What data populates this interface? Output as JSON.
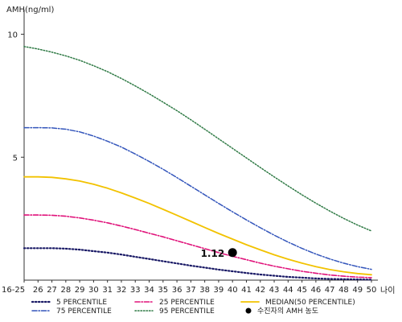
{
  "chart_data": {
    "type": "line",
    "ylabel": "AMH(ng/ml)",
    "xlabel": "나이",
    "ylim": [
      0,
      11
    ],
    "yticks": [
      5,
      10
    ],
    "x": [
      "16-25",
      "26",
      "27",
      "28",
      "29",
      "30",
      "31",
      "32",
      "33",
      "34",
      "35",
      "36",
      "37",
      "38",
      "39",
      "40",
      "41",
      "42",
      "43",
      "44",
      "45",
      "46",
      "47",
      "48",
      "49",
      "50"
    ],
    "series": [
      {
        "name": "5 PERCENTILE",
        "color": "#1a1a66",
        "dash": "1.5 2.5",
        "width": 2.2,
        "values": [
          1.3,
          1.3,
          1.3,
          1.28,
          1.24,
          1.18,
          1.12,
          1.04,
          0.95,
          0.86,
          0.77,
          0.68,
          0.59,
          0.51,
          0.43,
          0.36,
          0.29,
          0.23,
          0.18,
          0.13,
          0.1,
          0.07,
          0.05,
          0.04,
          0.03,
          0.02
        ]
      },
      {
        "name": "25 PERCENTILE",
        "color": "#e0127a",
        "dash": "6 2 1.5 2",
        "width": 1.6,
        "values": [
          2.65,
          2.65,
          2.64,
          2.6,
          2.53,
          2.44,
          2.33,
          2.2,
          2.06,
          1.91,
          1.76,
          1.6,
          1.44,
          1.28,
          1.12,
          0.97,
          0.83,
          0.69,
          0.57,
          0.46,
          0.36,
          0.28,
          0.21,
          0.16,
          0.12,
          0.1
        ]
      },
      {
        "name": "MEDIAN(50 PERCENTILE)",
        "color": "#f2c200",
        "dash": "",
        "width": 1.8,
        "values": [
          4.2,
          4.2,
          4.18,
          4.12,
          4.03,
          3.9,
          3.74,
          3.55,
          3.34,
          3.12,
          2.88,
          2.64,
          2.39,
          2.14,
          1.9,
          1.67,
          1.44,
          1.23,
          1.03,
          0.85,
          0.69,
          0.55,
          0.43,
          0.34,
          0.27,
          0.22
        ]
      },
      {
        "name": "75 PERCENTILE",
        "color": "#3355bb",
        "dash": "6 2 1.5 2",
        "width": 1.5,
        "values": [
          6.2,
          6.2,
          6.19,
          6.14,
          6.03,
          5.86,
          5.65,
          5.41,
          5.13,
          4.83,
          4.51,
          4.17,
          3.82,
          3.47,
          3.12,
          2.78,
          2.45,
          2.13,
          1.83,
          1.55,
          1.29,
          1.06,
          0.86,
          0.69,
          0.55,
          0.44
        ]
      },
      {
        "name": "95 PERCENTILE",
        "color": "#2f7a45",
        "dash": "1.5 2",
        "width": 1.5,
        "values": [
          9.5,
          9.4,
          9.27,
          9.12,
          8.94,
          8.72,
          8.48,
          8.2,
          7.9,
          7.58,
          7.24,
          6.89,
          6.52,
          6.14,
          5.75,
          5.36,
          4.97,
          4.58,
          4.2,
          3.83,
          3.47,
          3.13,
          2.81,
          2.51,
          2.24,
          2.0
        ]
      }
    ],
    "marker": {
      "name": "수진자의 AMH 농도",
      "x": "40",
      "y": 1.12,
      "label": "1.12"
    },
    "legend": [
      {
        "label": "5 PERCENTILE",
        "series": 0
      },
      {
        "label": "25 PERCENTILE",
        "series": 1
      },
      {
        "label": "MEDIAN(50 PERCENTILE)",
        "series": 2
      },
      {
        "label": "75 PERCENTILE",
        "series": 3
      },
      {
        "label": "95 PERCENTILE",
        "series": 4
      },
      {
        "label": "수진자의 AMH 농도",
        "marker": true
      }
    ],
    "legend_position": "bottom",
    "grid": false
  }
}
